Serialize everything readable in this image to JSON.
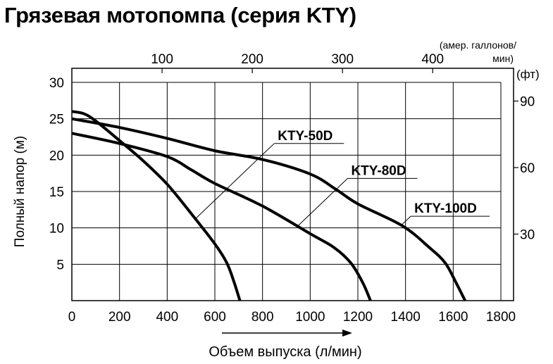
{
  "title": "Грязевая мотопомпа (серия KTY)",
  "chart_data": {
    "type": "line",
    "title": "Грязевая мотопомпа (серия KTY)",
    "xlabel": "Объем выпуска (л/мин)",
    "ylabel": "Полный напор (м)",
    "xlim": [
      0,
      1800
    ],
    "ylim": [
      0,
      30
    ],
    "grid": true,
    "x_ticks": [
      0,
      200,
      400,
      600,
      800,
      1000,
      1200,
      1400,
      1600,
      1800
    ],
    "y_ticks": [
      5,
      10,
      15,
      20,
      25,
      30
    ],
    "top_axis": {
      "label_line1": "(амер. галлонов/",
      "label_line2": "мин)",
      "ticks": [
        100,
        200,
        300,
        400
      ],
      "liters_per_unit": 3.785
    },
    "right_axis": {
      "label": "(фт)",
      "ticks": [
        30,
        60,
        90
      ],
      "meters_per_unit": 0.3048
    },
    "series": [
      {
        "name": "KTY-50D",
        "points": [
          [
            0,
            26
          ],
          [
            50,
            25.7
          ],
          [
            100,
            24.7
          ],
          [
            200,
            22
          ],
          [
            300,
            19.2
          ],
          [
            400,
            16
          ],
          [
            500,
            12
          ],
          [
            600,
            7.8
          ],
          [
            650,
            5.2
          ],
          [
            680,
            2.6
          ],
          [
            705,
            0
          ]
        ],
        "label_anchor": [
          520,
          11.3
        ],
        "label_at": [
          849,
          21.6
        ]
      },
      {
        "name": "KTY-80D",
        "points": [
          [
            0,
            23
          ],
          [
            200,
            21.6
          ],
          [
            400,
            19.8
          ],
          [
            500,
            18
          ],
          [
            600,
            16.1
          ],
          [
            800,
            13
          ],
          [
            1000,
            9.2
          ],
          [
            1100,
            7.3
          ],
          [
            1170,
            5.2
          ],
          [
            1220,
            2.5
          ],
          [
            1253,
            0
          ]
        ],
        "label_anchor": [
          946,
          10.2
        ],
        "label_at": [
          1157,
          16.8
        ]
      },
      {
        "name": "KTY-100D",
        "points": [
          [
            0,
            25
          ],
          [
            200,
            23.8
          ],
          [
            400,
            22.3
          ],
          [
            600,
            20.6
          ],
          [
            800,
            19.4
          ],
          [
            1000,
            17.4
          ],
          [
            1108,
            15.3
          ],
          [
            1200,
            13.3
          ],
          [
            1386,
            10.3
          ],
          [
            1500,
            7.3
          ],
          [
            1566,
            5.2
          ],
          [
            1610,
            2.6
          ],
          [
            1650,
            0
          ]
        ],
        "label_anchor": [
          1380,
          10.3
        ],
        "label_at": [
          1422,
          11.6
        ]
      }
    ]
  }
}
